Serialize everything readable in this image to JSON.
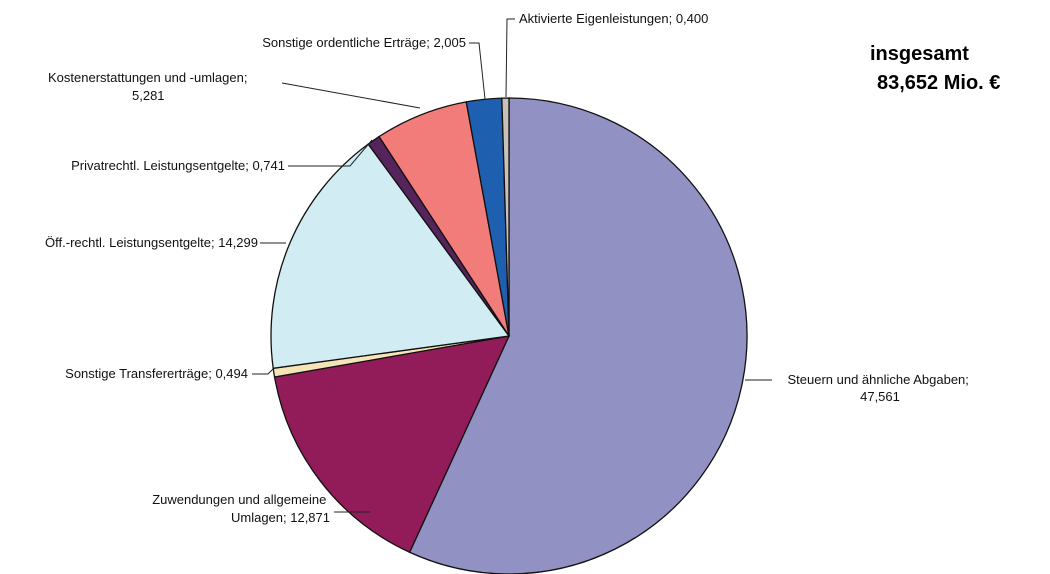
{
  "total": {
    "line1": "insgesamt",
    "line2": "83,652 Mio. €"
  },
  "chart_data": {
    "type": "pie",
    "title": "",
    "unit": "Mio. €",
    "total": 83.652,
    "slices": [
      {
        "category": "Steuern und ähnliche Abgaben",
        "value": 47.561,
        "label_lines": [
          "Steuern und ähnliche Abgaben;",
          "47,561"
        ],
        "color": "#9191c4"
      },
      {
        "category": "Zuwendungen und allgemeine Umlagen",
        "value": 12.871,
        "label_lines": [
          "Zuwendungen  und allgemeine",
          "Umlagen;  12,871"
        ],
        "color": "#921c5a"
      },
      {
        "category": "Sonstige Transfererträge",
        "value": 0.494,
        "label_lines": [
          "Sonstige Transfererträge;  0,494"
        ],
        "color": "#f4e4b8"
      },
      {
        "category": "Öff.-rechtl. Leistungsentgelte",
        "value": 14.299,
        "label_lines": [
          "Öff.-rechtl. Leistungsentgelte;  14,299"
        ],
        "color": "#d2ecf3"
      },
      {
        "category": "Privatrechtl. Leistungsentgelte",
        "value": 0.741,
        "label_lines": [
          "Privatrechtl.  Leistungsentgelte;  0,741"
        ],
        "color": "#55245a"
      },
      {
        "category": "Kostenerstattungen und -umlagen",
        "value": 5.281,
        "label_lines": [
          "Kostenerstattungen  und  -umlagen;",
          "5,281"
        ],
        "color": "#f27c7a"
      },
      {
        "category": "Sonstige ordentliche Erträge",
        "value": 2.005,
        "label_lines": [
          "Sonstige ordentliche  Erträge; 2,005"
        ],
        "color": "#1f5fb0"
      },
      {
        "category": "Aktivierte Eigenleistungen",
        "value": 0.4,
        "label_lines": [
          "Aktivierte  Eigenleistungen;  0,400"
        ],
        "color": "#c9c2b8"
      }
    ]
  }
}
